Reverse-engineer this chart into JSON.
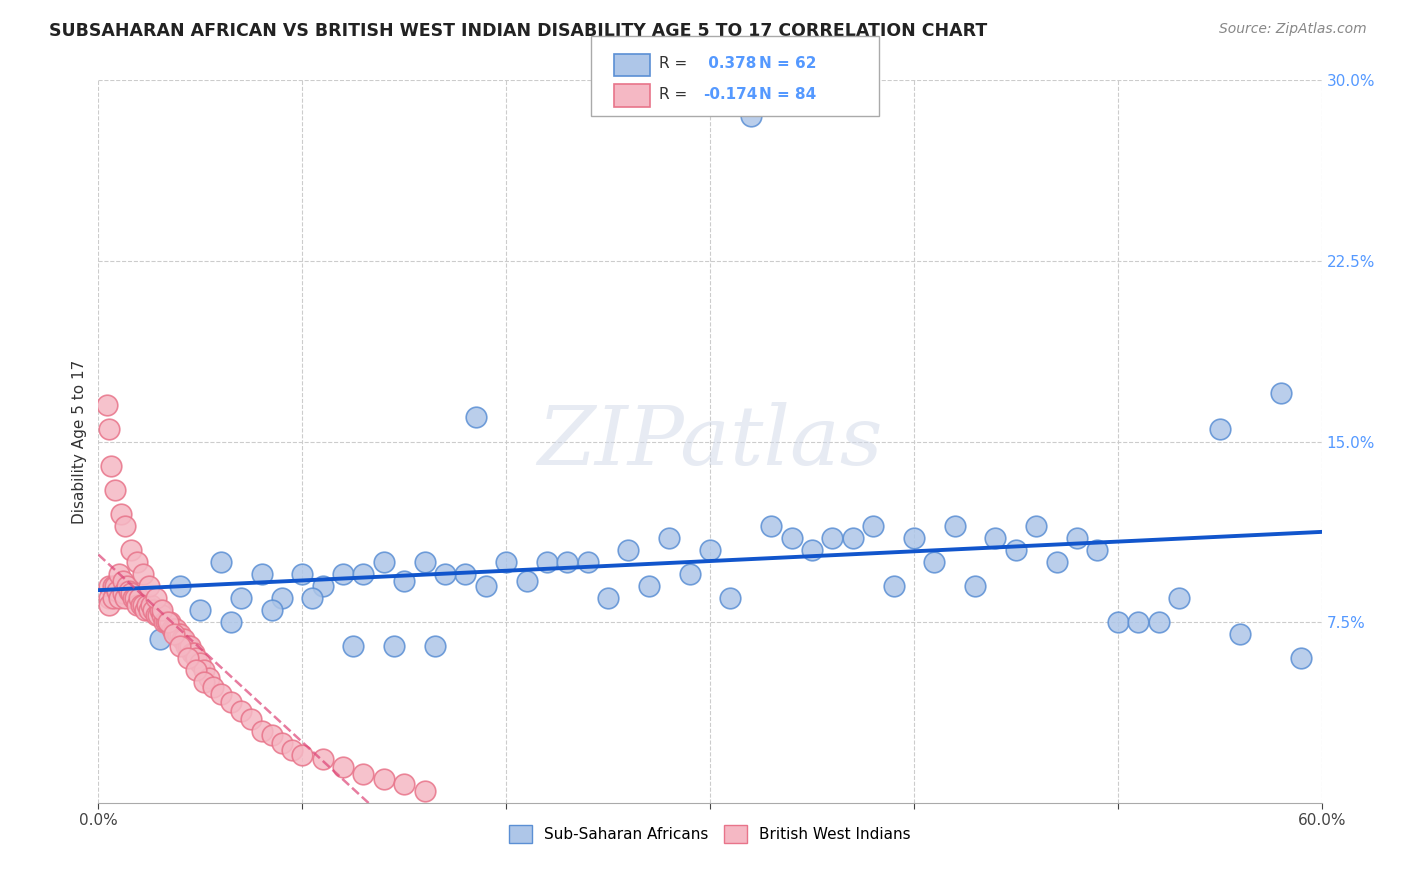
{
  "title": "SUBSAHARAN AFRICAN VS BRITISH WEST INDIAN DISABILITY AGE 5 TO 17 CORRELATION CHART",
  "source": "Source: ZipAtlas.com",
  "ylabel": "Disability Age 5 to 17",
  "xlim": [
    0.0,
    0.6
  ],
  "ylim": [
    0.0,
    0.3
  ],
  "background_color": "#ffffff",
  "blue_color": "#5b8fd4",
  "blue_fill": "#aec6e8",
  "pink_color": "#e8748a",
  "pink_fill": "#f5b8c4",
  "r_blue": 0.378,
  "n_blue": 62,
  "r_pink": -0.174,
  "n_pink": 84,
  "legend_label_blue": "Sub-Saharan Africans",
  "legend_label_pink": "British West Indians",
  "watermark": "ZIPatlas",
  "blue_scatter_x": [
    0.32,
    0.04,
    0.06,
    0.08,
    0.1,
    0.12,
    0.14,
    0.16,
    0.18,
    0.2,
    0.22,
    0.24,
    0.26,
    0.28,
    0.3,
    0.33,
    0.35,
    0.37,
    0.38,
    0.4,
    0.42,
    0.44,
    0.46,
    0.48,
    0.5,
    0.52,
    0.55,
    0.58,
    0.05,
    0.07,
    0.09,
    0.11,
    0.13,
    0.15,
    0.17,
    0.19,
    0.21,
    0.23,
    0.25,
    0.27,
    0.29,
    0.31,
    0.34,
    0.36,
    0.39,
    0.41,
    0.43,
    0.45,
    0.47,
    0.49,
    0.51,
    0.53,
    0.56,
    0.59,
    0.03,
    0.065,
    0.085,
    0.105,
    0.125,
    0.145,
    0.165,
    0.185
  ],
  "blue_scatter_y": [
    0.285,
    0.09,
    0.1,
    0.095,
    0.095,
    0.095,
    0.1,
    0.1,
    0.095,
    0.1,
    0.1,
    0.1,
    0.105,
    0.11,
    0.105,
    0.115,
    0.105,
    0.11,
    0.115,
    0.11,
    0.115,
    0.11,
    0.115,
    0.11,
    0.075,
    0.075,
    0.155,
    0.17,
    0.08,
    0.085,
    0.085,
    0.09,
    0.095,
    0.092,
    0.095,
    0.09,
    0.092,
    0.1,
    0.085,
    0.09,
    0.095,
    0.085,
    0.11,
    0.11,
    0.09,
    0.1,
    0.09,
    0.105,
    0.1,
    0.105,
    0.075,
    0.085,
    0.07,
    0.06,
    0.068,
    0.075,
    0.08,
    0.085,
    0.065,
    0.065,
    0.065,
    0.16
  ],
  "pink_scatter_x": [
    0.005,
    0.005,
    0.005,
    0.007,
    0.007,
    0.008,
    0.009,
    0.01,
    0.01,
    0.012,
    0.012,
    0.013,
    0.014,
    0.015,
    0.016,
    0.017,
    0.018,
    0.019,
    0.02,
    0.021,
    0.022,
    0.023,
    0.024,
    0.025,
    0.026,
    0.027,
    0.028,
    0.029,
    0.03,
    0.031,
    0.032,
    0.033,
    0.034,
    0.035,
    0.036,
    0.037,
    0.038,
    0.039,
    0.04,
    0.041,
    0.042,
    0.043,
    0.044,
    0.045,
    0.046,
    0.047,
    0.048,
    0.05,
    0.052,
    0.054,
    0.004,
    0.006,
    0.008,
    0.011,
    0.013,
    0.016,
    0.019,
    0.022,
    0.025,
    0.028,
    0.031,
    0.034,
    0.037,
    0.04,
    0.044,
    0.048,
    0.052,
    0.056,
    0.06,
    0.065,
    0.07,
    0.075,
    0.08,
    0.085,
    0.09,
    0.095,
    0.1,
    0.11,
    0.12,
    0.13,
    0.14,
    0.15,
    0.16,
    0.005
  ],
  "pink_scatter_y": [
    0.09,
    0.085,
    0.082,
    0.09,
    0.085,
    0.09,
    0.088,
    0.095,
    0.085,
    0.092,
    0.087,
    0.085,
    0.09,
    0.088,
    0.087,
    0.085,
    0.085,
    0.082,
    0.085,
    0.082,
    0.082,
    0.08,
    0.082,
    0.08,
    0.082,
    0.08,
    0.078,
    0.078,
    0.08,
    0.078,
    0.075,
    0.075,
    0.075,
    0.075,
    0.072,
    0.072,
    0.072,
    0.07,
    0.07,
    0.068,
    0.068,
    0.065,
    0.065,
    0.065,
    0.062,
    0.062,
    0.06,
    0.058,
    0.055,
    0.052,
    0.165,
    0.14,
    0.13,
    0.12,
    0.115,
    0.105,
    0.1,
    0.095,
    0.09,
    0.085,
    0.08,
    0.075,
    0.07,
    0.065,
    0.06,
    0.055,
    0.05,
    0.048,
    0.045,
    0.042,
    0.038,
    0.035,
    0.03,
    0.028,
    0.025,
    0.022,
    0.02,
    0.018,
    0.015,
    0.012,
    0.01,
    0.008,
    0.005,
    0.155
  ]
}
